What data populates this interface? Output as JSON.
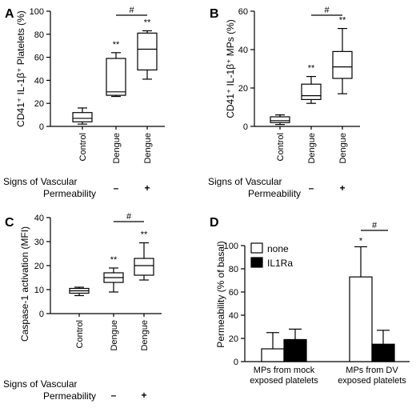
{
  "signs_label_line1": "Signs of Vascular",
  "signs_label_line2": "Permeability",
  "minus_symbol": "–",
  "plus_symbol": "+",
  "chart_data": [
    {
      "panel": "A",
      "type": "box",
      "ylabel": "CD41⁺ IL-1β⁺ Platelets (%)",
      "ylim": [
        0,
        100
      ],
      "yticks": [
        0,
        20,
        40,
        60,
        80,
        100
      ],
      "categories": [
        "Control",
        "Dengue",
        "Dengue"
      ],
      "signs": [
        "",
        "–",
        "+"
      ],
      "boxes": [
        {
          "min": 2,
          "q1": 4,
          "median": 7,
          "q3": 12,
          "max": 16
        },
        {
          "min": 26,
          "q1": 27,
          "median": 30,
          "q3": 59,
          "max": 64
        },
        {
          "min": 41,
          "q1": 49,
          "median": 67,
          "q3": 81,
          "max": 83
        }
      ],
      "annotations": [
        "",
        "**",
        "**"
      ],
      "bracket": {
        "from": 1,
        "to": 2,
        "label": "#"
      }
    },
    {
      "panel": "B",
      "type": "box",
      "ylabel": "CD41⁺ IL-1β⁺ MPs (%)",
      "ylim": [
        0,
        60
      ],
      "yticks": [
        0,
        20,
        40,
        60
      ],
      "categories": [
        "Control",
        "Dengue",
        "Dengue"
      ],
      "signs": [
        "",
        "–",
        "+"
      ],
      "boxes": [
        {
          "min": 1,
          "q1": 2,
          "median": 3,
          "q3": 5,
          "max": 6
        },
        {
          "min": 12,
          "q1": 14,
          "median": 16,
          "q3": 22,
          "max": 26
        },
        {
          "min": 17,
          "q1": 25,
          "median": 31,
          "q3": 39,
          "max": 51
        }
      ],
      "annotations": [
        "",
        "**",
        "**"
      ],
      "bracket": {
        "from": 1,
        "to": 2,
        "label": "#"
      }
    },
    {
      "panel": "C",
      "type": "box",
      "ylabel": "Caspase-1 activation (MFI)",
      "ylim": [
        0,
        40
      ],
      "yticks": [
        0,
        10,
        20,
        30,
        40
      ],
      "categories": [
        "Control",
        "Dengue",
        "Dengue"
      ],
      "signs": [
        "",
        "–",
        "+"
      ],
      "boxes": [
        {
          "min": 7.5,
          "q1": 8.5,
          "median": 9.5,
          "q3": 10.5,
          "max": 11
        },
        {
          "min": 9,
          "q1": 13,
          "median": 15,
          "q3": 17,
          "max": 19
        },
        {
          "min": 14,
          "q1": 16,
          "median": 20,
          "q3": 23,
          "max": 29.5
        }
      ],
      "annotations": [
        "",
        "**",
        "**"
      ],
      "bracket": {
        "from": 1,
        "to": 2,
        "label": "#"
      }
    },
    {
      "panel": "D",
      "type": "bar",
      "ylabel": "Permeability (% of basal)",
      "ylim": [
        0,
        100
      ],
      "yticks": [
        0,
        20,
        40,
        60,
        80,
        100
      ],
      "categories": [
        [
          "MPs from mock",
          "exposed platelets"
        ],
        [
          "MPs from DV",
          "exposed platelets"
        ]
      ],
      "legend_position": "top-left",
      "series": [
        {
          "name": "none",
          "color": "#ffffff",
          "values": [
            11,
            73
          ],
          "errors": [
            14,
            26
          ]
        },
        {
          "name": "IL1Ra",
          "color": "#000000",
          "values": [
            19,
            15
          ],
          "errors": [
            9,
            12
          ]
        }
      ],
      "annotations": [
        {
          "category": 1,
          "series": 0,
          "label": "*"
        }
      ],
      "bracket": {
        "category": 1,
        "label": "#"
      }
    }
  ]
}
